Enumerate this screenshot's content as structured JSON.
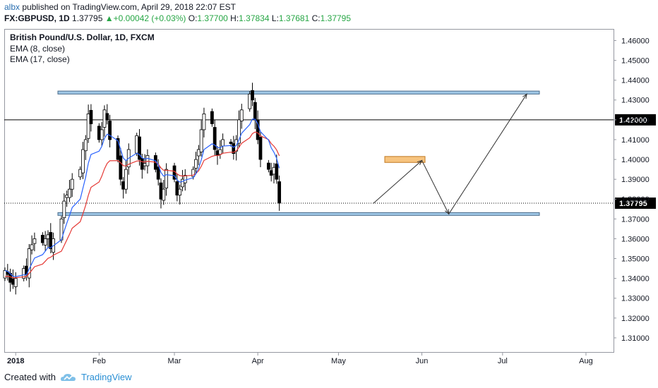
{
  "header": {
    "author": "albx",
    "published_text": "published on TradingView.com, April 29, 2018 22:07 EST",
    "symbol": "FX:GBPUSD, 1D",
    "last": "1.37795",
    "change": "+0.00042 (+0.03%)",
    "o_label": "O:",
    "o_value": "1.37700",
    "h_label": "H:",
    "h_value": "1.37834",
    "l_label": "L:",
    "l_value": "1.37681",
    "c_label": "C:",
    "c_value": "1.37795"
  },
  "footer": {
    "created_with": "Created with",
    "brand": "TradingView"
  },
  "colors": {
    "candle_up": "#ffffff",
    "candle_down": "#000000",
    "ema_fast": "#2962ff",
    "ema_slow": "#e53935",
    "zone": "#9fc7e6",
    "target_box": "#f7c47f"
  },
  "chart_data": {
    "type": "candlestick",
    "title": "British Pound/U.S. Dollar, 1D, FXCM",
    "indicators": [
      "EMA (8, close)",
      "EMA (17, close)"
    ],
    "y_ticks": [
      "1.46000",
      "1.45000",
      "1.44000",
      "1.43000",
      "1.42000",
      "1.41000",
      "1.40000",
      "1.39000",
      "1.38000",
      "1.37000",
      "1.36000",
      "1.35000",
      "1.34000",
      "1.33000",
      "1.32000",
      "1.31000"
    ],
    "x_labels": [
      "2018",
      "Feb",
      "Mar",
      "Apr",
      "May",
      "Jun",
      "Jul",
      "Aug"
    ],
    "ylim": [
      1.3025,
      1.4655
    ],
    "hline_level": 1.42,
    "hline_label": "1.42000",
    "last_price": 1.37795,
    "last_price_label": "1.37795",
    "resistance_zone": [
      1.433,
      1.4345
    ],
    "support_zone": [
      1.3718,
      1.3732
    ],
    "target_box": [
      1.3985,
      1.4015
    ],
    "close_path": [
      1.344,
      1.342,
      1.338,
      1.337,
      1.34,
      1.345,
      1.342,
      1.355,
      1.357,
      1.36,
      1.358,
      1.36,
      1.362,
      1.355,
      1.36,
      1.37,
      1.379,
      1.382,
      1.385,
      1.39,
      1.395,
      1.405,
      1.41,
      1.423,
      1.418,
      1.41,
      1.415,
      1.425,
      1.42,
      1.41,
      1.4,
      1.39,
      1.385,
      1.395,
      1.405,
      1.412,
      1.4,
      1.395,
      1.398,
      1.402,
      1.395,
      1.39,
      1.38,
      1.385,
      1.395,
      1.39,
      1.382,
      1.385,
      1.39,
      1.392,
      1.395,
      1.4,
      1.405,
      1.415,
      1.423,
      1.418,
      1.405,
      1.402,
      1.405,
      1.41,
      1.408,
      1.403,
      1.41,
      1.42,
      1.425,
      1.433,
      1.43,
      1.42,
      1.41,
      1.4,
      1.395,
      1.392,
      1.396,
      1.39,
      1.378
    ]
  },
  "annotations": {
    "path": [
      {
        "x_day": 137,
        "y": 1.3779
      },
      {
        "x_day": 155,
        "y": 1.3995
      },
      {
        "x_day": 165,
        "y": 1.3725
      },
      {
        "x_day": 194,
        "y": 1.433
      }
    ]
  }
}
